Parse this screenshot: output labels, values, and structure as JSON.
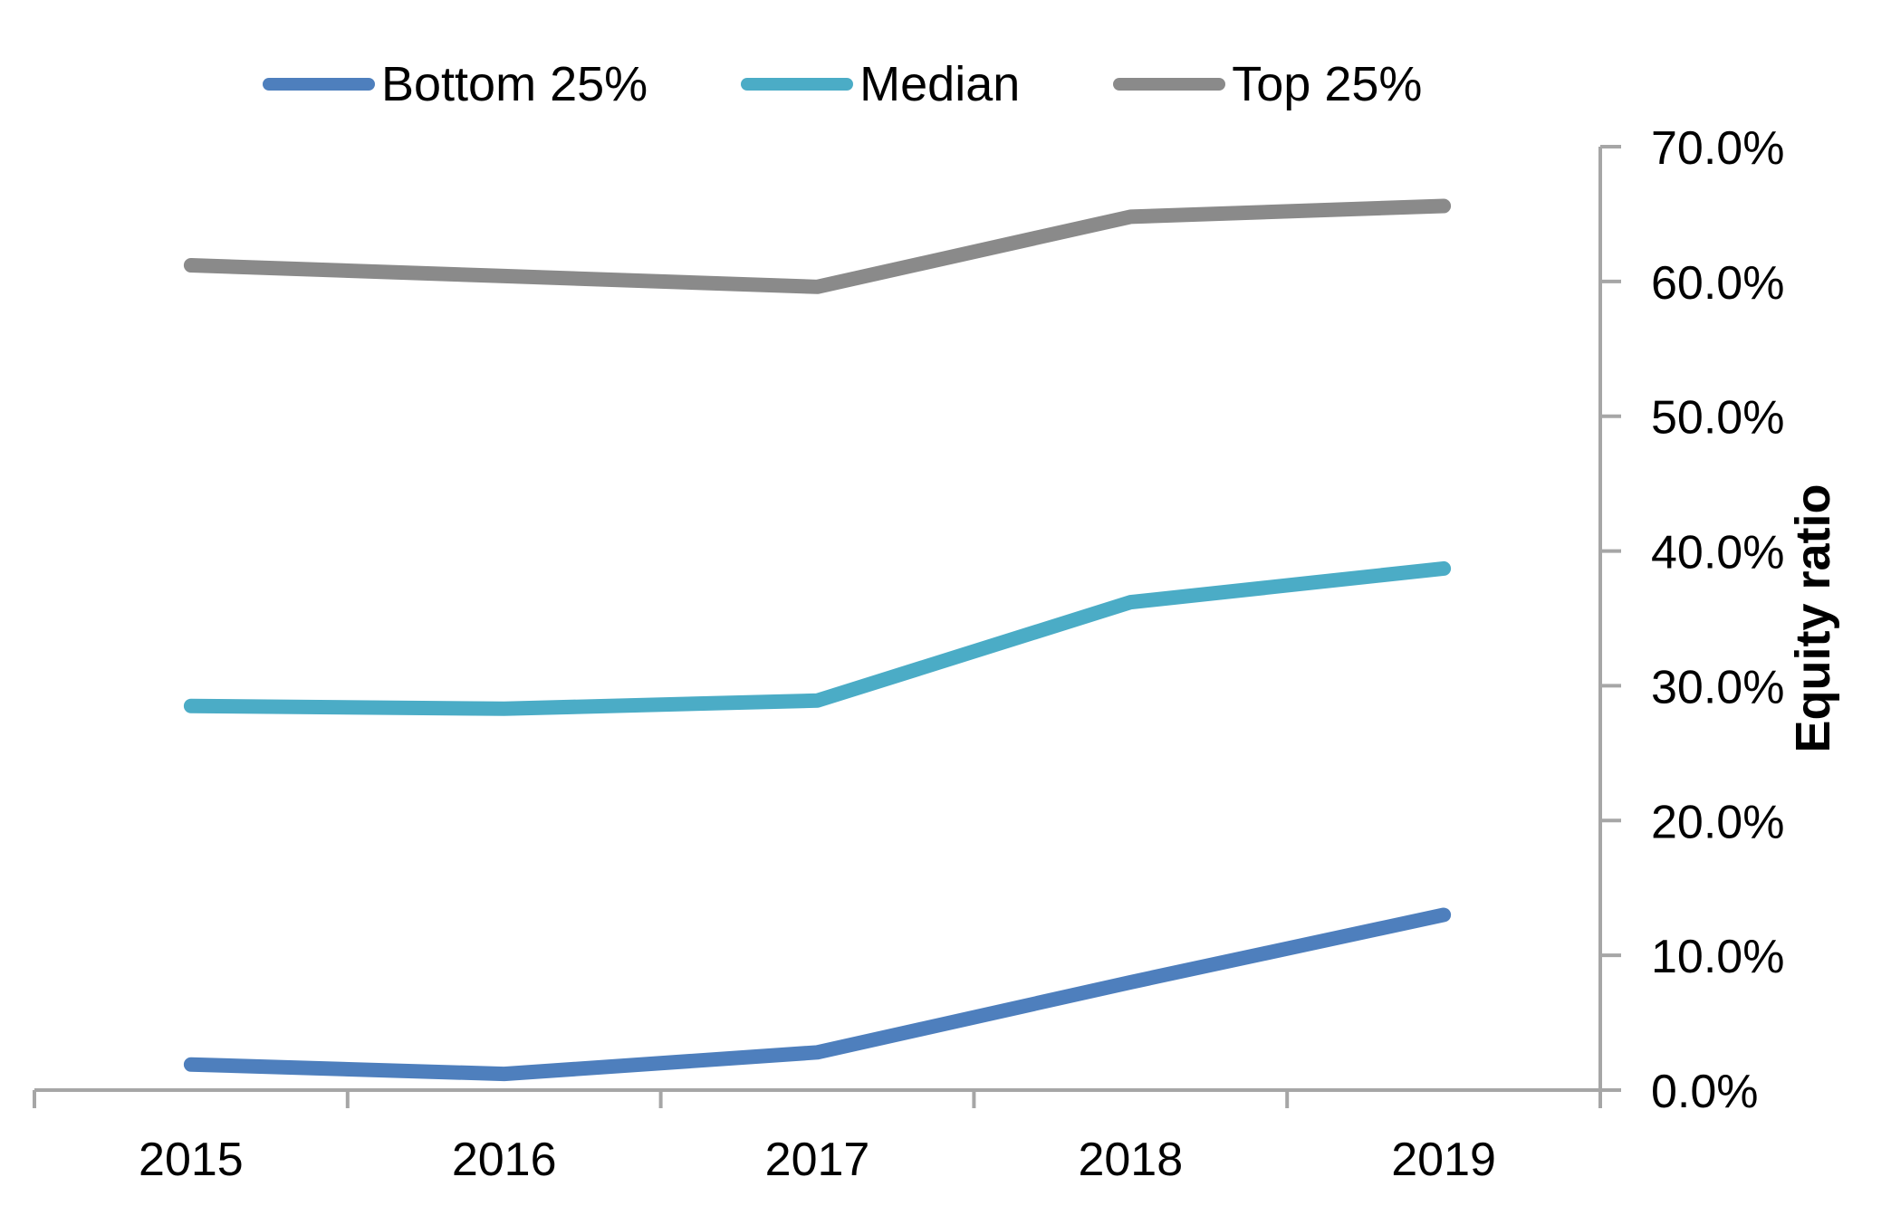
{
  "chart_data": {
    "type": "line",
    "categories": [
      "2015",
      "2016",
      "2017",
      "2018",
      "2019"
    ],
    "series": [
      {
        "name": "Bottom 25%",
        "color": "#4E7FBD",
        "values": [
          1.9,
          1.2,
          2.8,
          8.0,
          13.0
        ]
      },
      {
        "name": "Median",
        "color": "#4BACC6",
        "values": [
          28.5,
          28.3,
          28.9,
          36.2,
          38.7
        ]
      },
      {
        "name": "Top 25%",
        "color": "#8A8A8A",
        "values": [
          61.2,
          60.4,
          59.6,
          64.8,
          65.6
        ]
      }
    ],
    "title": "",
    "xlabel": "",
    "ylabel": "Equity ratio",
    "ylim": [
      0,
      70
    ],
    "ytick_values": [
      0,
      10,
      20,
      30,
      40,
      50,
      60,
      70
    ],
    "ytick_labels": [
      "0.0%",
      "10.0%",
      "20.0%",
      "30.0%",
      "40.0%",
      "50.0%",
      "60.0%",
      "70.0%"
    ],
    "y_axis_side": "right",
    "legend_position": "top",
    "grid": false,
    "axis_color": "#A6A6A6",
    "text_color": "#000000",
    "background": "#FFFFFF"
  }
}
